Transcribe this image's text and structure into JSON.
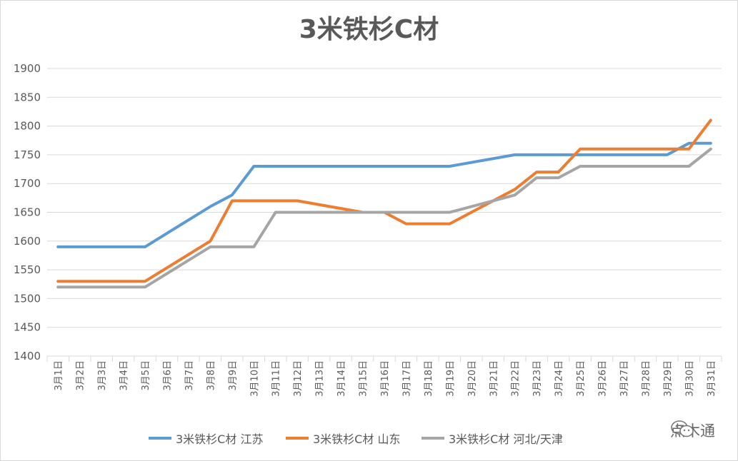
{
  "chart_data": {
    "type": "line",
    "title": "3米铁杉C材",
    "categories": [
      "3月1日",
      "3月2日",
      "3月3日",
      "3月4日",
      "3月5日",
      "3月6日",
      "3月7日",
      "3月8日",
      "3月9日",
      "3月10日",
      "3月11日",
      "3月12日",
      "3月13日",
      "3月14日",
      "3月15日",
      "3月16日",
      "3月17日",
      "3月18日",
      "3月19日",
      "3月20日",
      "3月21日",
      "3月22日",
      "3月23日",
      "3月24日",
      "3月25日",
      "3月26日",
      "3月27日",
      "3月28日",
      "3月29日",
      "3月30日",
      "3月31日"
    ],
    "yticks": [
      "1400",
      "1450",
      "1500",
      "1550",
      "1600",
      "1650",
      "1700",
      "1750",
      "1800",
      "1850",
      "1900"
    ],
    "ylim": [
      1400,
      1900
    ],
    "grid": true,
    "legend_position": "bottom",
    "series": [
      {
        "name": "3米铁杉C材 江苏",
        "color": "#5b9bd5",
        "values": [
          1590,
          1590,
          1590,
          1590,
          1590,
          null,
          null,
          1660,
          1680,
          1730,
          1730,
          1730,
          null,
          null,
          1730,
          null,
          1730,
          1730,
          1730,
          null,
          null,
          1750,
          1750,
          1750,
          1750,
          1750,
          1750,
          1750,
          1750,
          1770,
          1770
        ]
      },
      {
        "name": "3米铁杉C材 山东",
        "color": "#ed7d31",
        "values": [
          1530,
          1530,
          1530,
          1530,
          1530,
          null,
          null,
          1600,
          1670,
          1670,
          1670,
          1670,
          null,
          null,
          1650,
          1650,
          1630,
          1630,
          1630,
          null,
          null,
          1690,
          1720,
          1720,
          1760,
          1760,
          1760,
          1760,
          1760,
          1760,
          1810
        ]
      },
      {
        "name": "3米铁杉C材 河北/天津",
        "color": "#a5a5a5",
        "values": [
          1520,
          1520,
          1520,
          1520,
          1520,
          null,
          null,
          1590,
          1590,
          1590,
          1650,
          1650,
          null,
          null,
          1650,
          1650,
          1650,
          1650,
          1650,
          null,
          null,
          1680,
          1710,
          1710,
          1730,
          1730,
          1730,
          1730,
          1730,
          1730,
          1760
        ]
      }
    ]
  },
  "watermark": {
    "icon": "wechat-icon",
    "text": "点木通"
  }
}
